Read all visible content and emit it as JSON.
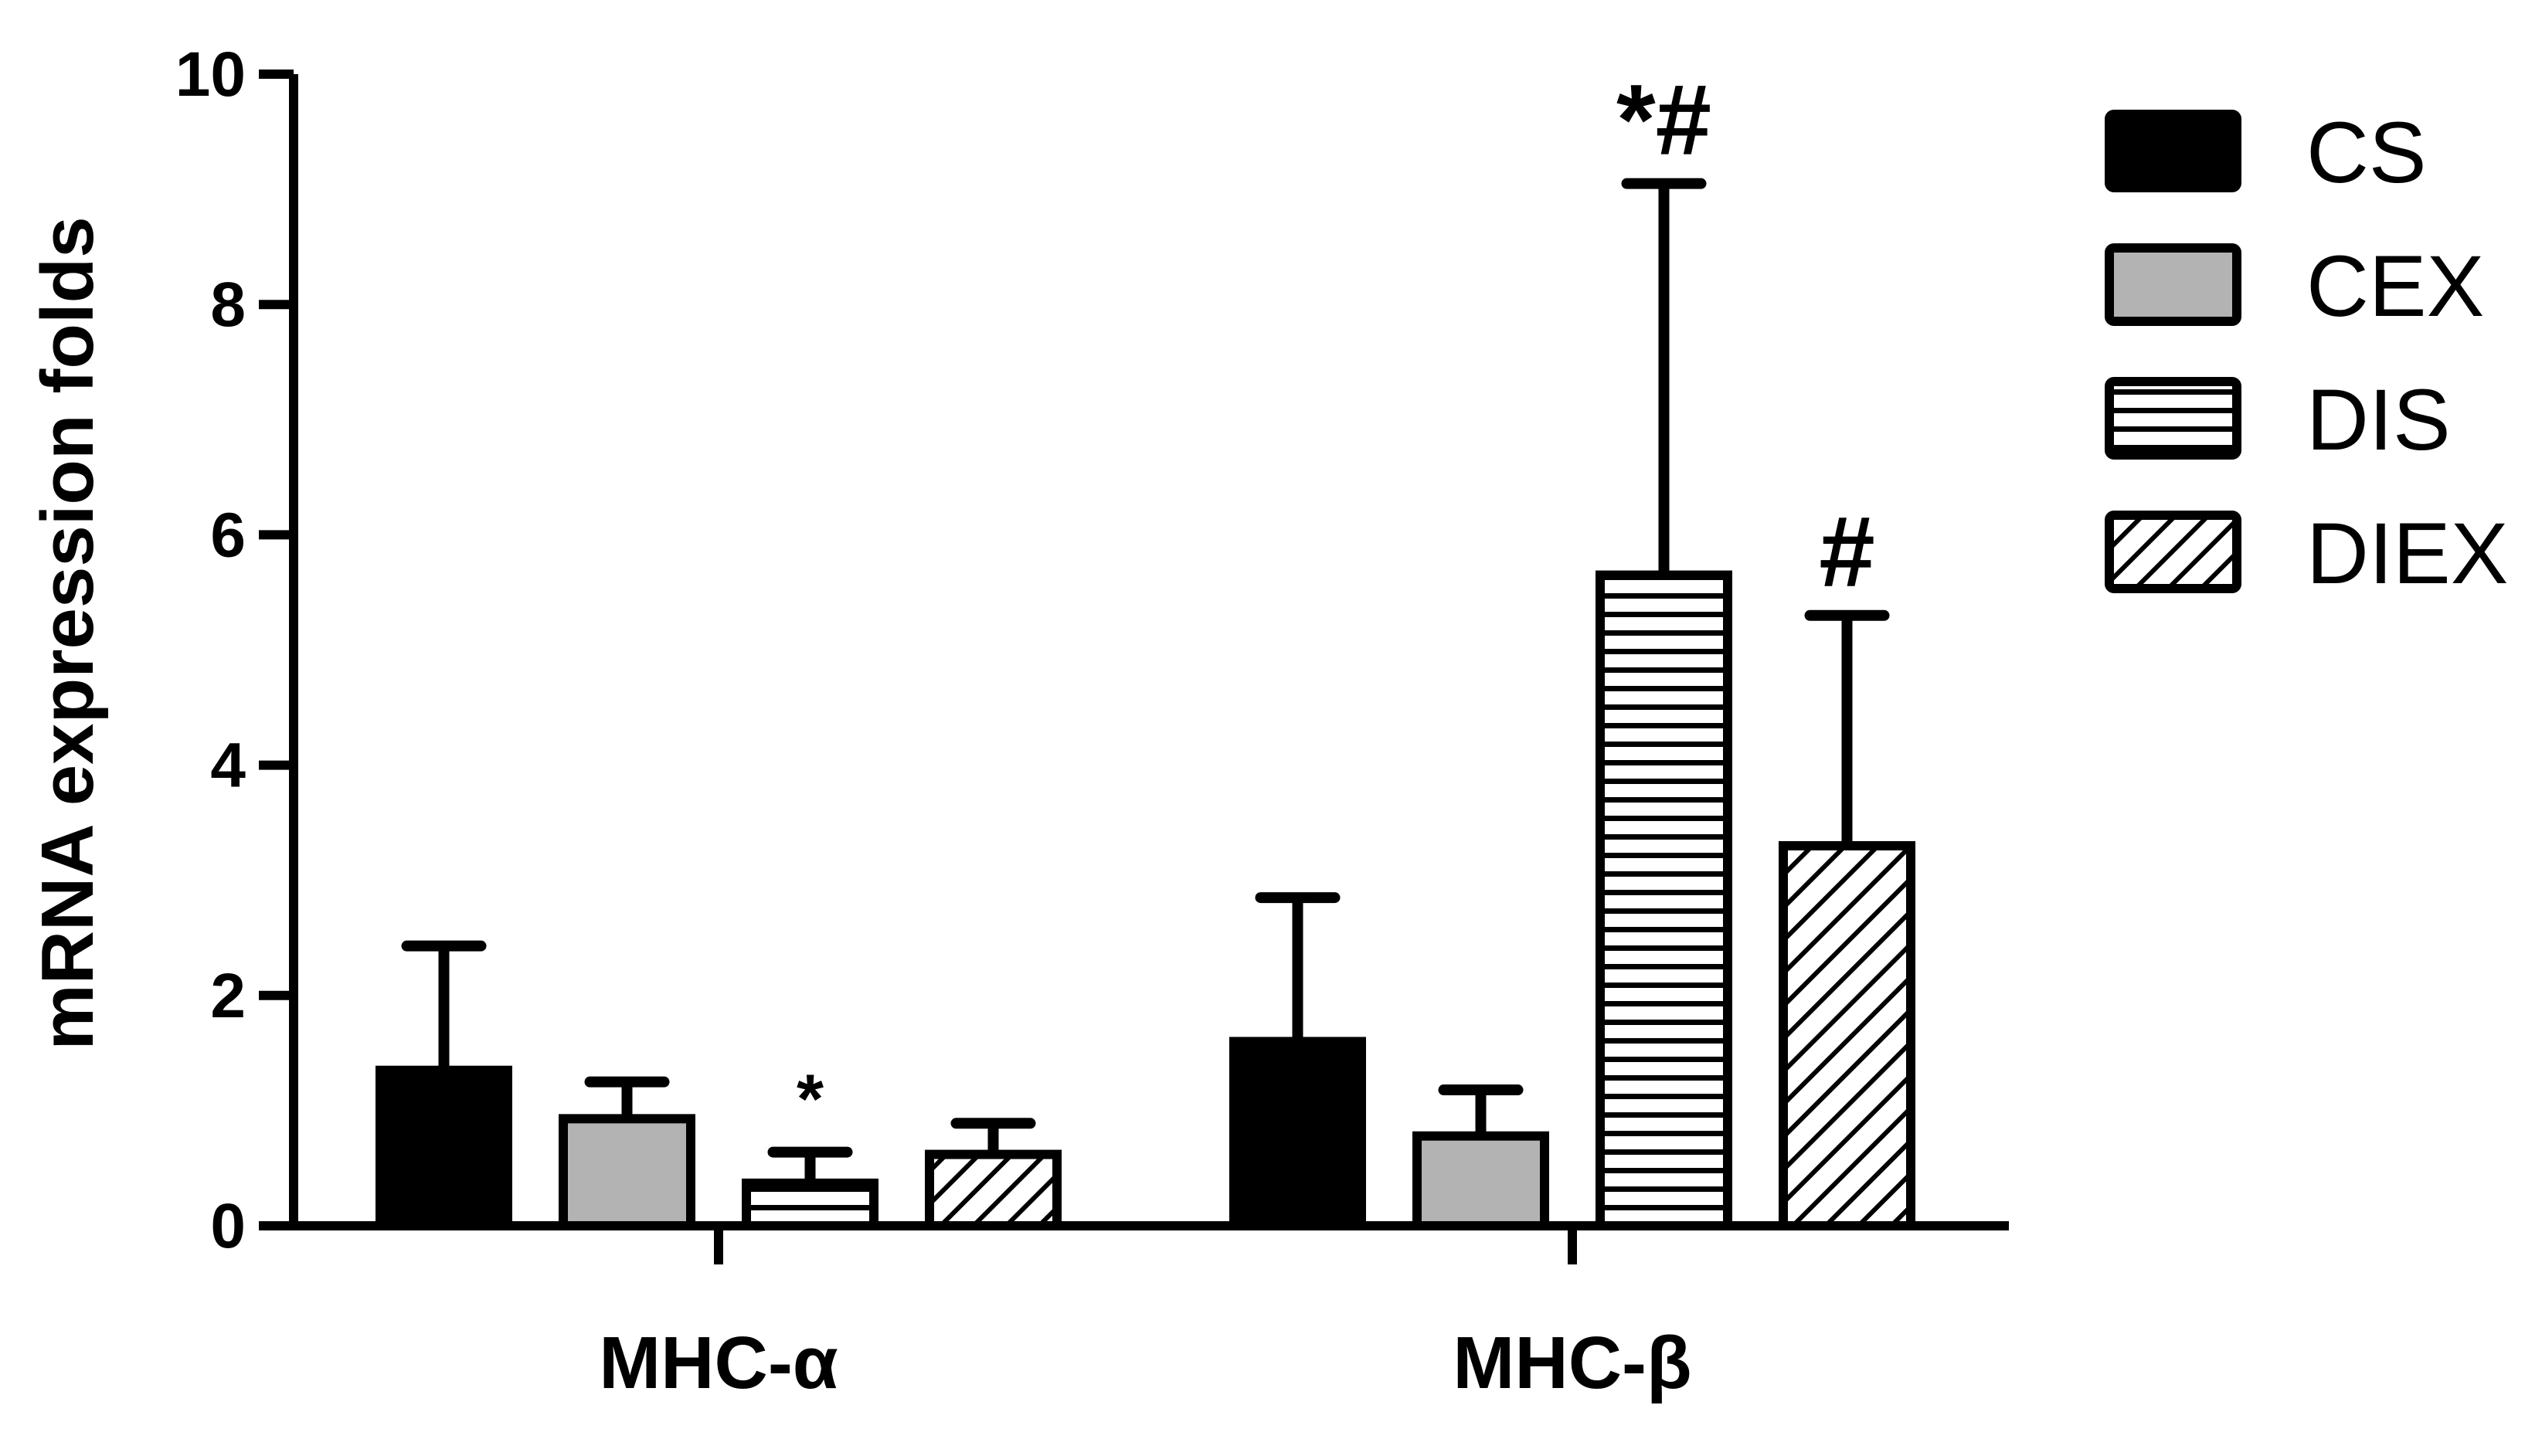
{
  "chart_data": {
    "type": "bar",
    "title": "",
    "xlabel": "",
    "ylabel": "mRNA expression folds",
    "ylim": [
      0,
      10
    ],
    "yticks": [
      "0",
      "2",
      "4",
      "6",
      "8",
      "10"
    ],
    "grid": false,
    "legend_position": "right",
    "categories": [
      "MHC-α",
      "MHC-β"
    ],
    "series": [
      {
        "name": "CS",
        "pattern": "solid",
        "color": "#000000",
        "values": [
          1.35,
          1.6
        ],
        "errors": [
          1.08,
          1.25
        ]
      },
      {
        "name": "CEX",
        "pattern": "solid",
        "color": "#b3b3b3",
        "values": [
          0.93,
          0.78
        ],
        "errors": [
          0.32,
          0.4
        ]
      },
      {
        "name": "DIS",
        "pattern": "horizontal",
        "color": "#ffffff",
        "values": [
          0.37,
          5.65
        ],
        "errors": [
          0.27,
          3.4
        ]
      },
      {
        "name": "DIEX",
        "pattern": "diagonal",
        "color": "#ffffff",
        "values": [
          0.62,
          3.3
        ],
        "errors": [
          0.27,
          2.0
        ]
      }
    ],
    "annotations": [
      {
        "category": "MHC-α",
        "series": "DIS",
        "text": "*"
      },
      {
        "category": "MHC-β",
        "series": "DIS",
        "text": "*#"
      },
      {
        "category": "MHC-β",
        "series": "DIEX",
        "text": "#"
      }
    ]
  }
}
